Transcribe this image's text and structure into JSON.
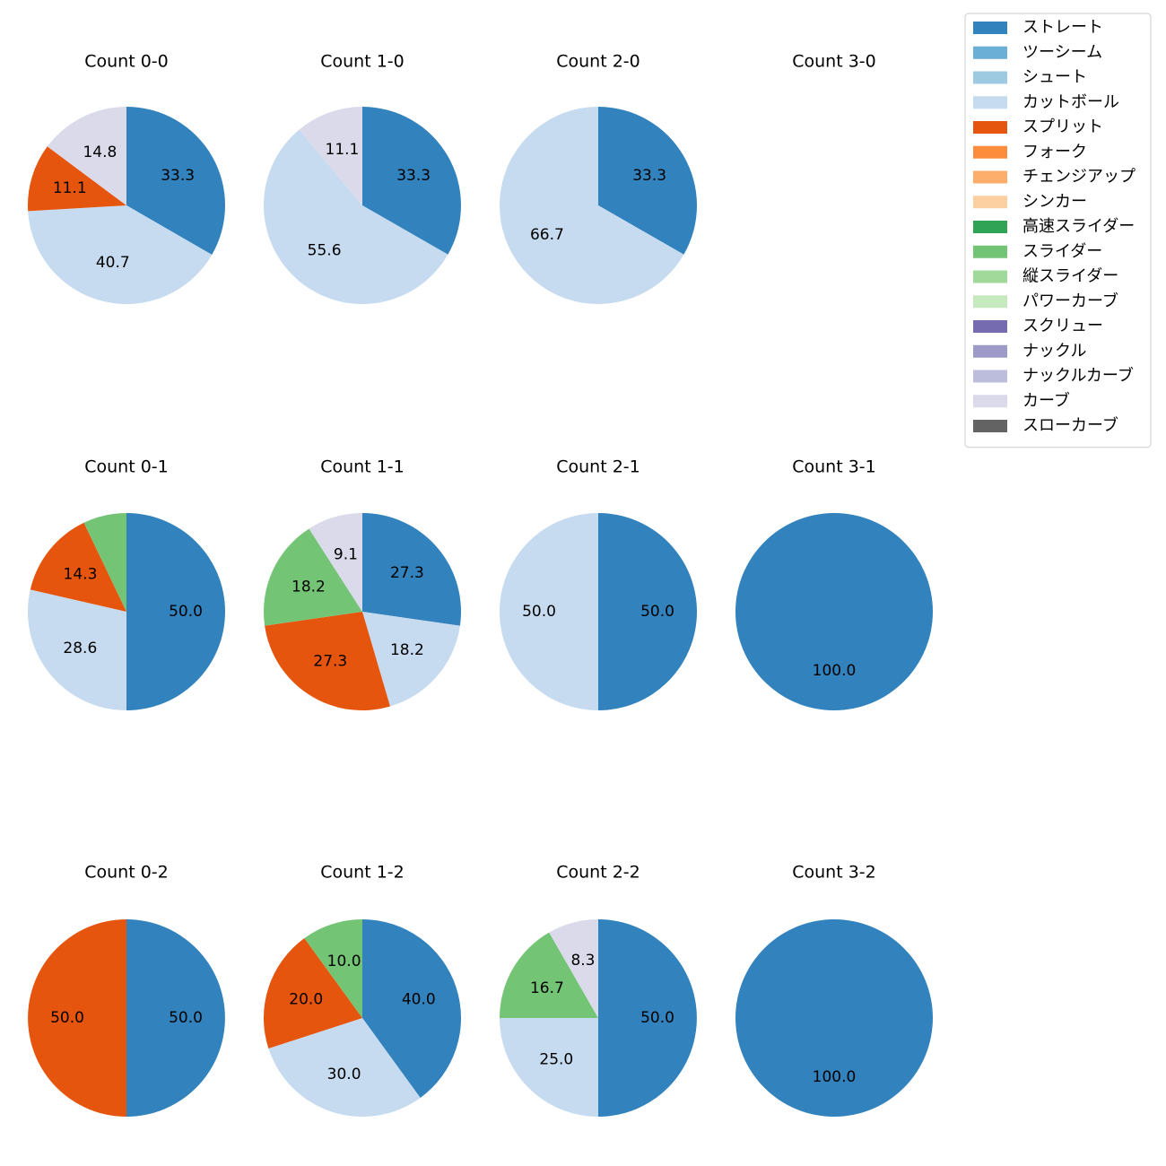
{
  "chart_data": {
    "type": "pie",
    "legend_position": "top-right",
    "legend": [
      {
        "label": "ストレート",
        "color": "#3182bd"
      },
      {
        "label": "ツーシーム",
        "color": "#6baed6"
      },
      {
        "label": "シュート",
        "color": "#9ecae1"
      },
      {
        "label": "カットボール",
        "color": "#c6dbef"
      },
      {
        "label": "スプリット",
        "color": "#e6550d"
      },
      {
        "label": "フォーク",
        "color": "#fd8d3c"
      },
      {
        "label": "チェンジアップ",
        "color": "#fdae6b"
      },
      {
        "label": "シンカー",
        "color": "#fdd0a2"
      },
      {
        "label": "高速スライダー",
        "color": "#31a354"
      },
      {
        "label": "スライダー",
        "color": "#74c476"
      },
      {
        "label": "縦スライダー",
        "color": "#a1d99b"
      },
      {
        "label": "パワーカーブ",
        "color": "#c7e9c0"
      },
      {
        "label": "スクリュー",
        "color": "#756bb1"
      },
      {
        "label": "ナックル",
        "color": "#9e9ac8"
      },
      {
        "label": "ナックルカーブ",
        "color": "#bcbddc"
      },
      {
        "label": "カーブ",
        "color": "#dadaeb"
      },
      {
        "label": "スローカーブ",
        "color": "#636363"
      }
    ],
    "charts": [
      {
        "title": "Count 0-0",
        "slices": [
          {
            "pitch": "ストレート",
            "value": 33.3
          },
          {
            "pitch": "カットボール",
            "value": 40.7
          },
          {
            "pitch": "スプリット",
            "value": 11.1
          },
          {
            "pitch": "カーブ",
            "value": 14.8
          }
        ]
      },
      {
        "title": "Count 1-0",
        "slices": [
          {
            "pitch": "ストレート",
            "value": 33.3
          },
          {
            "pitch": "カットボール",
            "value": 55.6
          },
          {
            "pitch": "カーブ",
            "value": 11.1
          }
        ]
      },
      {
        "title": "Count 2-0",
        "slices": [
          {
            "pitch": "ストレート",
            "value": 33.3
          },
          {
            "pitch": "カットボール",
            "value": 66.7
          }
        ]
      },
      {
        "title": "Count 3-0",
        "slices": []
      },
      {
        "title": "Count 0-1",
        "slices": [
          {
            "pitch": "ストレート",
            "value": 50.0
          },
          {
            "pitch": "カットボール",
            "value": 28.6
          },
          {
            "pitch": "スプリット",
            "value": 14.3
          },
          {
            "pitch": "スライダー",
            "value": 7.1,
            "label": ""
          }
        ]
      },
      {
        "title": "Count 1-1",
        "slices": [
          {
            "pitch": "ストレート",
            "value": 27.3
          },
          {
            "pitch": "カットボール",
            "value": 18.2
          },
          {
            "pitch": "スプリット",
            "value": 27.3
          },
          {
            "pitch": "スライダー",
            "value": 18.2
          },
          {
            "pitch": "カーブ",
            "value": 9.1
          }
        ]
      },
      {
        "title": "Count 2-1",
        "slices": [
          {
            "pitch": "ストレート",
            "value": 50.0
          },
          {
            "pitch": "カットボール",
            "value": 50.0
          }
        ]
      },
      {
        "title": "Count 3-1",
        "slices": [
          {
            "pitch": "ストレート",
            "value": 100.0
          }
        ]
      },
      {
        "title": "Count 0-2",
        "slices": [
          {
            "pitch": "ストレート",
            "value": 50.0
          },
          {
            "pitch": "スプリット",
            "value": 50.0
          }
        ]
      },
      {
        "title": "Count 1-2",
        "slices": [
          {
            "pitch": "ストレート",
            "value": 40.0
          },
          {
            "pitch": "カットボール",
            "value": 30.0
          },
          {
            "pitch": "スプリット",
            "value": 20.0
          },
          {
            "pitch": "スライダー",
            "value": 10.0
          }
        ]
      },
      {
        "title": "Count 2-2",
        "slices": [
          {
            "pitch": "ストレート",
            "value": 50.0
          },
          {
            "pitch": "カットボール",
            "value": 25.0
          },
          {
            "pitch": "スライダー",
            "value": 16.7
          },
          {
            "pitch": "カーブ",
            "value": 8.3
          }
        ]
      },
      {
        "title": "Count 3-2",
        "slices": [
          {
            "pitch": "ストレート",
            "value": 100.0
          }
        ]
      }
    ]
  }
}
